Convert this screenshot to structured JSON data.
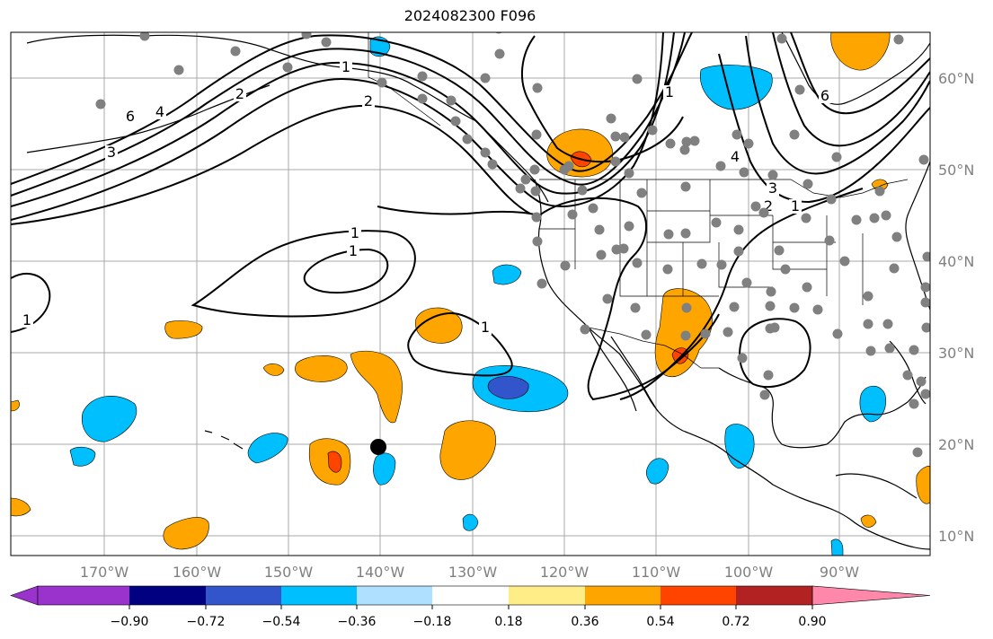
{
  "title": "2024082300 F096",
  "lon_labels": [
    "170°W",
    "160°W",
    "150°W",
    "140°W",
    "130°W",
    "120°W",
    "110°W",
    "100°W",
    "90°W"
  ],
  "lat_labels": [
    "60°N",
    "50°N",
    "40°N",
    "30°N",
    "20°N",
    "10°N"
  ],
  "colorbar": {
    "tick_labels": [
      "−0.90",
      "−0.72",
      "−0.54",
      "−0.36",
      "−0.18",
      "0.18",
      "0.36",
      "0.54",
      "0.72",
      "0.90"
    ],
    "colors": [
      "#9933cc",
      "#000080",
      "#3355cc",
      "#00bfff",
      "#b0e0ff",
      "#ffffff",
      "#ffee88",
      "#ffa500",
      "#ff4400",
      "#b22222",
      "#ff88aa"
    ]
  },
  "contour_labels": [
    "6",
    "4",
    "3",
    "2",
    "1",
    "2",
    "1",
    "1",
    "1",
    "1",
    "3",
    "2",
    "1",
    "4",
    "6",
    "1"
  ],
  "colors": {
    "grid": "#aaaaaa",
    "coast": "#000000",
    "contour": "#000000",
    "station": "#808080",
    "axis_label": "#808080",
    "orange": "#ffa500",
    "red": "#ff4400",
    "cyan": "#00bfff",
    "blue": "#3355cc"
  }
}
